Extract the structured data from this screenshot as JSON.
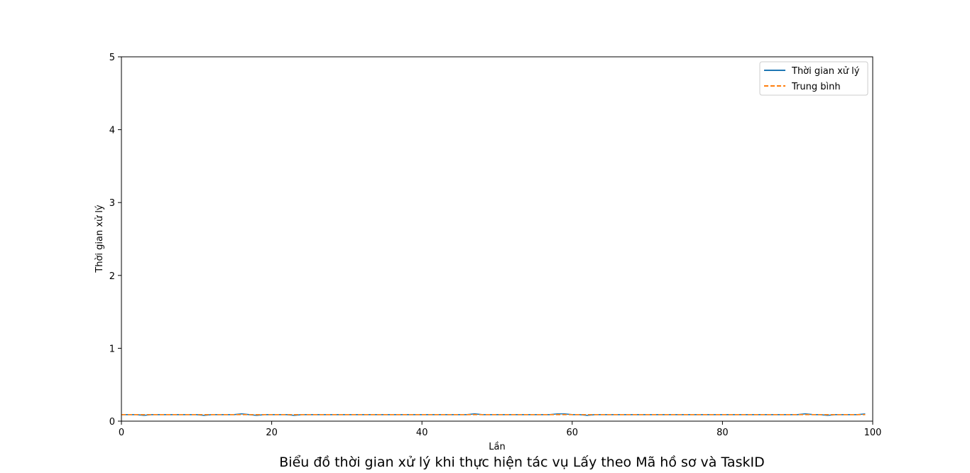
{
  "caption": "Biểu đồ thời gian xử lý khi thực hiện tác vụ Lấy theo Mã hồ sơ và TaskID",
  "chart_data": {
    "type": "line",
    "title": "",
    "xlabel": "Lần",
    "ylabel": "Thời gian xử lý",
    "xlim": [
      0,
      100
    ],
    "ylim": [
      0,
      5
    ],
    "xticks": [
      0,
      20,
      40,
      60,
      80,
      100
    ],
    "yticks": [
      0,
      1,
      2,
      3,
      4,
      5
    ],
    "grid": false,
    "legend_position": "top-right",
    "series": [
      {
        "name": "Thời gian xử lý",
        "color": "#1f77b4",
        "style": "solid",
        "x": [
          0,
          1,
          2,
          3,
          4,
          5,
          6,
          7,
          8,
          9,
          10,
          11,
          12,
          13,
          14,
          15,
          16,
          17,
          18,
          19,
          20,
          21,
          22,
          23,
          24,
          25,
          26,
          27,
          28,
          29,
          30,
          31,
          32,
          33,
          34,
          35,
          36,
          37,
          38,
          39,
          40,
          41,
          42,
          43,
          44,
          45,
          46,
          47,
          48,
          49,
          50,
          51,
          52,
          53,
          54,
          55,
          56,
          57,
          58,
          59,
          60,
          61,
          62,
          63,
          64,
          65,
          66,
          67,
          68,
          69,
          70,
          71,
          72,
          73,
          74,
          75,
          76,
          77,
          78,
          79,
          80,
          81,
          82,
          83,
          84,
          85,
          86,
          87,
          88,
          89,
          90,
          91,
          92,
          93,
          94,
          95,
          96,
          97,
          98,
          99
        ],
        "values": [
          0.09,
          0.09,
          0.09,
          0.08,
          0.09,
          0.09,
          0.09,
          0.09,
          0.09,
          0.09,
          0.09,
          0.08,
          0.09,
          0.09,
          0.09,
          0.09,
          0.1,
          0.09,
          0.08,
          0.09,
          0.09,
          0.09,
          0.09,
          0.08,
          0.09,
          0.09,
          0.09,
          0.09,
          0.09,
          0.09,
          0.09,
          0.09,
          0.09,
          0.09,
          0.09,
          0.09,
          0.09,
          0.09,
          0.09,
          0.09,
          0.09,
          0.09,
          0.09,
          0.09,
          0.09,
          0.09,
          0.09,
          0.1,
          0.09,
          0.09,
          0.09,
          0.09,
          0.09,
          0.09,
          0.09,
          0.09,
          0.09,
          0.09,
          0.1,
          0.1,
          0.09,
          0.09,
          0.08,
          0.09,
          0.09,
          0.09,
          0.09,
          0.09,
          0.09,
          0.09,
          0.09,
          0.09,
          0.09,
          0.09,
          0.09,
          0.09,
          0.09,
          0.09,
          0.09,
          0.09,
          0.09,
          0.09,
          0.09,
          0.09,
          0.09,
          0.09,
          0.09,
          0.09,
          0.09,
          0.09,
          0.09,
          0.1,
          0.09,
          0.09,
          0.08,
          0.09,
          0.09,
          0.09,
          0.09,
          0.1
        ]
      },
      {
        "name": "Trung bình",
        "color": "#ff7f0e",
        "style": "dashed",
        "x": [
          0,
          1,
          2,
          3,
          4,
          5,
          6,
          7,
          8,
          9,
          10,
          11,
          12,
          13,
          14,
          15,
          16,
          17,
          18,
          19,
          20,
          21,
          22,
          23,
          24,
          25,
          26,
          27,
          28,
          29,
          30,
          31,
          32,
          33,
          34,
          35,
          36,
          37,
          38,
          39,
          40,
          41,
          42,
          43,
          44,
          45,
          46,
          47,
          48,
          49,
          50,
          51,
          52,
          53,
          54,
          55,
          56,
          57,
          58,
          59,
          60,
          61,
          62,
          63,
          64,
          65,
          66,
          67,
          68,
          69,
          70,
          71,
          72,
          73,
          74,
          75,
          76,
          77,
          78,
          79,
          80,
          81,
          82,
          83,
          84,
          85,
          86,
          87,
          88,
          89,
          90,
          91,
          92,
          93,
          94,
          95,
          96,
          97,
          98,
          99
        ],
        "values": [
          0.09,
          0.09,
          0.09,
          0.09,
          0.09,
          0.09,
          0.09,
          0.09,
          0.09,
          0.09,
          0.09,
          0.09,
          0.09,
          0.09,
          0.09,
          0.09,
          0.09,
          0.09,
          0.09,
          0.09,
          0.09,
          0.09,
          0.09,
          0.09,
          0.09,
          0.09,
          0.09,
          0.09,
          0.09,
          0.09,
          0.09,
          0.09,
          0.09,
          0.09,
          0.09,
          0.09,
          0.09,
          0.09,
          0.09,
          0.09,
          0.09,
          0.09,
          0.09,
          0.09,
          0.09,
          0.09,
          0.09,
          0.09,
          0.09,
          0.09,
          0.09,
          0.09,
          0.09,
          0.09,
          0.09,
          0.09,
          0.09,
          0.09,
          0.09,
          0.09,
          0.09,
          0.09,
          0.09,
          0.09,
          0.09,
          0.09,
          0.09,
          0.09,
          0.09,
          0.09,
          0.09,
          0.09,
          0.09,
          0.09,
          0.09,
          0.09,
          0.09,
          0.09,
          0.09,
          0.09,
          0.09,
          0.09,
          0.09,
          0.09,
          0.09,
          0.09,
          0.09,
          0.09,
          0.09,
          0.09,
          0.09,
          0.09,
          0.09,
          0.09,
          0.09,
          0.09,
          0.09,
          0.09,
          0.09,
          0.09
        ]
      }
    ]
  }
}
